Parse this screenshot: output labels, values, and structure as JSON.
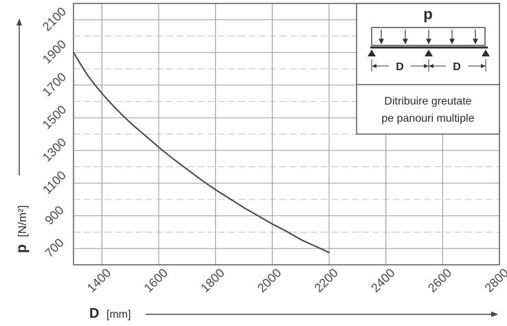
{
  "chart_data": {
    "type": "line",
    "xlabel": {
      "symbol": "D",
      "unit": "[mm]"
    },
    "ylabel": {
      "symbol": "p",
      "unit": "[N/m²]"
    },
    "xlim": [
      1300,
      2800
    ],
    "ylim": [
      600,
      2200
    ],
    "x_ticks": [
      1400,
      1600,
      1800,
      2000,
      2200,
      2400,
      2600,
      2800
    ],
    "y_ticks": [
      700,
      900,
      1100,
      1300,
      1500,
      1700,
      1900,
      2100
    ],
    "grid": true,
    "series": [
      {
        "x": [
          1300,
          1350,
          1400,
          1450,
          1500,
          1550,
          1600,
          1650,
          1700,
          1750,
          1800,
          1850,
          1900,
          1950,
          2000,
          2050,
          2100,
          2150,
          2200
        ],
        "y": [
          1900,
          1760,
          1650,
          1555,
          1470,
          1395,
          1320,
          1250,
          1185,
          1120,
          1060,
          1005,
          950,
          900,
          850,
          805,
          755,
          715,
          675
        ]
      }
    ],
    "inset": {
      "load_symbol": "p",
      "span_labels": [
        "D",
        "D"
      ],
      "caption_lines": [
        "Ditribuire greutate",
        "pe panouri multiple"
      ]
    }
  }
}
